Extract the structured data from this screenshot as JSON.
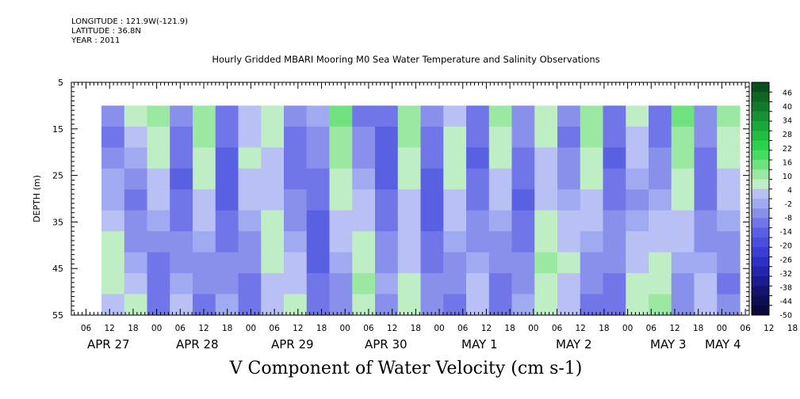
{
  "header": {
    "longitude": "LONGITUDE : 121.9W(-121.9)",
    "latitude": "LATITUDE : 36.8N",
    "year": "YEAR : 2011"
  },
  "chart_data": {
    "type": "heatmap",
    "title": "Hourly Gridded MBARI Mooring M0 Sea Water Temperature and Salinity Observations",
    "xlabel": "V Component of Water Velocity (cm s-1)",
    "ylabel": "DEPTH (m)",
    "ylim": [
      5,
      55
    ],
    "y_inverted": true,
    "y_ticks": [
      5,
      15,
      25,
      35,
      45,
      55
    ],
    "x_hour_ticks": [
      "06",
      "12",
      "18",
      "00",
      "06",
      "12",
      "18",
      "00",
      "06",
      "12",
      "18",
      "00",
      "06",
      "12",
      "18",
      "00",
      "06",
      "12",
      "18",
      "00",
      "06",
      "12",
      "18",
      "00",
      "06",
      "12",
      "18",
      "00",
      "06",
      "12",
      "18",
      "00"
    ],
    "x_date_labels": [
      "APR 27",
      "APR 28",
      "APR 29",
      "APR 30",
      "MAY  1",
      "MAY  2",
      "MAY  3",
      "MAY  4"
    ],
    "data_depth_range": [
      10,
      55
    ],
    "colorbar": {
      "labels": [
        "46",
        "40",
        "34",
        "28",
        "22",
        "16",
        "10",
        "4",
        "-2",
        "-8",
        "-14",
        "-20",
        "-26",
        "-32",
        "-38",
        "-44",
        "-50"
      ],
      "colors_top_to_bottom": [
        "#0a4f1e",
        "#0e6524",
        "#127b2b",
        "#169232",
        "#1aa83a",
        "#20be42",
        "#2ad24c",
        "#45dc60",
        "#6fe27e",
        "#9be8a3",
        "#c0eec4",
        "#b8c0f4",
        "#a0aaf0",
        "#8890ec",
        "#7076e8",
        "#5a60e2",
        "#4a4edc",
        "#3a3ed6",
        "#2c30c4",
        "#2226a8",
        "#1a1c8c",
        "#141470",
        "#0e0e55",
        "#0a0a40"
      ]
    },
    "columns": [
      {
        "day": "APR 27",
        "hour": "00",
        "v": [
          -4,
          -8,
          -6,
          -3,
          -2,
          4,
          6,
          8,
          6,
          3
        ]
      },
      {
        "day": "APR 27",
        "hour": "06",
        "v": [
          6,
          2,
          -2,
          -6,
          -8,
          -6,
          -4,
          -2,
          2,
          6
        ]
      },
      {
        "day": "APR 27",
        "hour": "12",
        "v": [
          10,
          8,
          6,
          4,
          2,
          -2,
          -6,
          -8,
          -10,
          -8
        ]
      },
      {
        "day": "APR 27",
        "hour": "18",
        "v": [
          -6,
          -8,
          -10,
          -12,
          -10,
          -8,
          -6,
          -4,
          -2,
          4
        ]
      },
      {
        "day": "APR 28",
        "hour": "00",
        "v": [
          12,
          10,
          8,
          6,
          4,
          2,
          -2,
          -4,
          -6,
          -8
        ]
      },
      {
        "day": "APR 28",
        "hour": "06",
        "v": [
          -8,
          -10,
          -12,
          -14,
          -12,
          -10,
          -8,
          -6,
          -4,
          -2
        ]
      },
      {
        "day": "APR 28",
        "hour": "12",
        "v": [
          2,
          4,
          6,
          4,
          2,
          -2,
          -4,
          -6,
          -8,
          -10
        ]
      },
      {
        "day": "APR 28",
        "hour": "18",
        "v": [
          8,
          6,
          4,
          2,
          4,
          6,
          8,
          6,
          4,
          2
        ]
      },
      {
        "day": "APR 29",
        "hour": "00",
        "v": [
          -6,
          -8,
          -10,
          -8,
          -6,
          -4,
          -2,
          2,
          4,
          6
        ]
      },
      {
        "day": "APR 29",
        "hour": "06",
        "v": [
          -2,
          -4,
          -6,
          -8,
          -10,
          -12,
          -14,
          -12,
          -10,
          -8
        ]
      },
      {
        "day": "APR 29",
        "hour": "12",
        "v": [
          14,
          12,
          10,
          8,
          6,
          4,
          2,
          -2,
          -4,
          -6
        ]
      },
      {
        "day": "APR 29",
        "hour": "18",
        "v": [
          -8,
          -6,
          -4,
          -2,
          2,
          4,
          6,
          8,
          10,
          8
        ]
      },
      {
        "day": "APR 30",
        "hour": "00",
        "v": [
          -10,
          -12,
          -14,
          -12,
          -10,
          -8,
          -6,
          -4,
          -2,
          -4
        ]
      },
      {
        "day": "APR 30",
        "hour": "06",
        "v": [
          12,
          10,
          8,
          6,
          4,
          2,
          2,
          4,
          6,
          8
        ]
      },
      {
        "day": "APR 30",
        "hour": "12",
        "v": [
          -6,
          -8,
          -10,
          -12,
          -14,
          -12,
          -10,
          -8,
          -6,
          -4
        ]
      },
      {
        "day": "APR 30",
        "hour": "18",
        "v": [
          4,
          6,
          8,
          6,
          4,
          2,
          -2,
          -4,
          -6,
          -8
        ]
      },
      {
        "day": "MAY 1",
        "hour": "00",
        "v": [
          -8,
          -10,
          -12,
          -10,
          -8,
          -6,
          -4,
          -2,
          2,
          4
        ]
      },
      {
        "day": "MAY 1",
        "hour": "06",
        "v": [
          10,
          8,
          6,
          4,
          2,
          -2,
          -4,
          -6,
          -8,
          -10
        ]
      },
      {
        "day": "MAY 1",
        "hour": "12",
        "v": [
          -4,
          -6,
          -8,
          -10,
          -12,
          -10,
          -8,
          -6,
          -4,
          -2
        ]
      },
      {
        "day": "MAY 1",
        "hour": "18",
        "v": [
          8,
          6,
          4,
          2,
          4,
          6,
          8,
          10,
          8,
          6
        ]
      },
      {
        "day": "MAY 2",
        "hour": "00",
        "v": [
          -6,
          -8,
          -6,
          -4,
          -2,
          2,
          4,
          6,
          4,
          2
        ]
      },
      {
        "day": "MAY 2",
        "hour": "06",
        "v": [
          12,
          10,
          8,
          6,
          4,
          2,
          -2,
          -4,
          -6,
          -8
        ]
      },
      {
        "day": "MAY 2",
        "hour": "12",
        "v": [
          -8,
          -10,
          -12,
          -10,
          -8,
          -6,
          -4,
          -6,
          -8,
          -10
        ]
      },
      {
        "day": "MAY 2",
        "hour": "18",
        "v": [
          6,
          4,
          2,
          -2,
          -4,
          -2,
          2,
          4,
          6,
          8
        ]
      },
      {
        "day": "MAY 3",
        "hour": "00",
        "v": [
          -10,
          -8,
          -6,
          -4,
          -2,
          2,
          4,
          6,
          8,
          10
        ]
      },
      {
        "day": "MAY 3",
        "hour": "06",
        "v": [
          14,
          12,
          10,
          8,
          6,
          4,
          2,
          -2,
          -4,
          -6
        ]
      },
      {
        "day": "MAY 3",
        "hour": "12",
        "v": [
          -4,
          -6,
          -8,
          -10,
          -8,
          -6,
          -4,
          -2,
          2,
          4
        ]
      },
      {
        "day": "MAY 3",
        "hour": "18",
        "v": [
          10,
          8,
          6,
          4,
          2,
          -2,
          -4,
          -6,
          -8,
          -6
        ]
      }
    ]
  }
}
